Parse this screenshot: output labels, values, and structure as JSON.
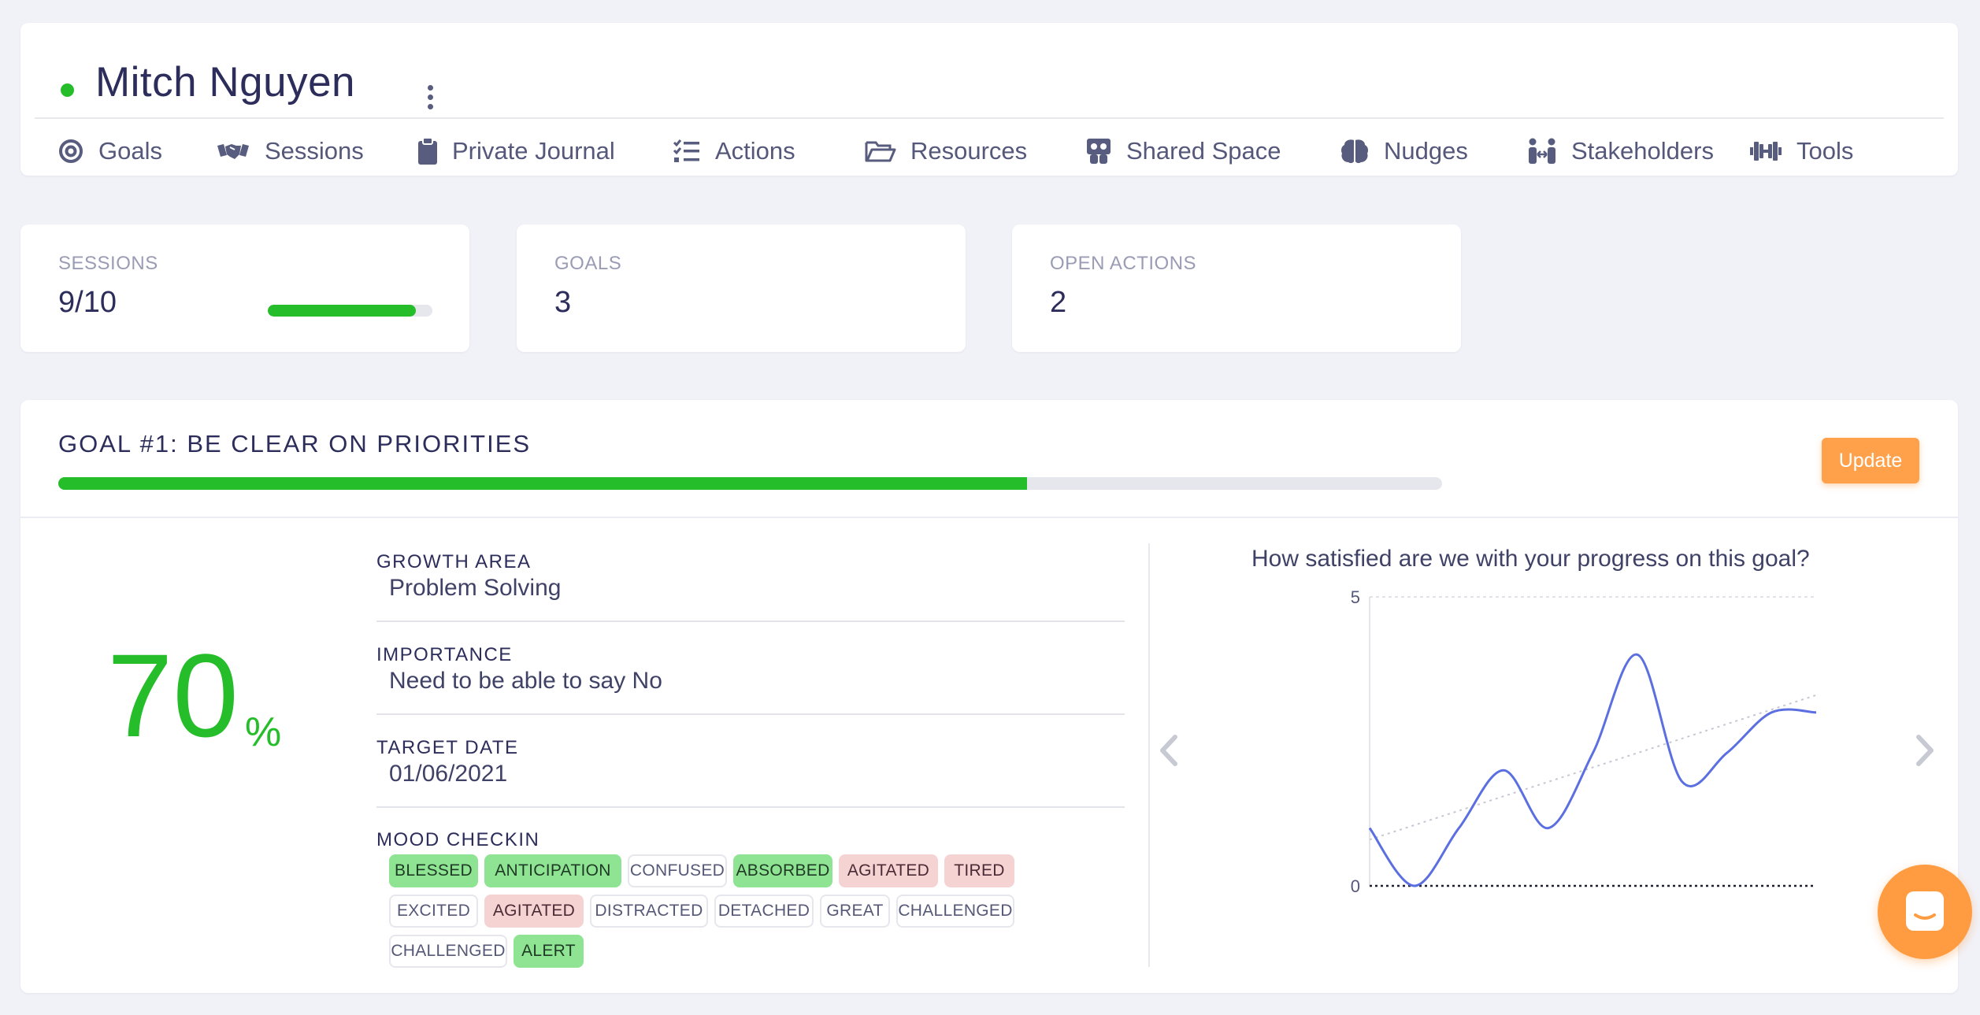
{
  "header": {
    "name": "Mitch Nguyen",
    "status_color": "#25bd2a",
    "tabs": [
      {
        "label": "Goals",
        "icon": "target-icon"
      },
      {
        "label": "Sessions",
        "icon": "handshake-icon"
      },
      {
        "label": "Private Journal",
        "icon": "clipboard-icon"
      },
      {
        "label": "Actions",
        "icon": "checklist-icon"
      },
      {
        "label": "Resources",
        "icon": "folder-open-icon"
      },
      {
        "label": "Shared Space",
        "icon": "shared-space-icon"
      },
      {
        "label": "Nudges",
        "icon": "brain-icon"
      },
      {
        "label": "Stakeholders",
        "icon": "people-arrows-icon"
      },
      {
        "label": "Tools",
        "icon": "dumbbell-icon"
      }
    ]
  },
  "stats": {
    "sessions": {
      "label": "SESSIONS",
      "value": "9/10",
      "progress": 0.9
    },
    "goals": {
      "label": "GOALS",
      "value": "3"
    },
    "open_actions": {
      "label": "OPEN ACTIONS",
      "value": "2"
    }
  },
  "goal": {
    "title": "GOAL #1: BE CLEAR ON PRIORITIES",
    "progress": 0.7,
    "update_label": "Update",
    "percent": "70",
    "percent_sign": "%",
    "growth_area_label": "GROWTH AREA",
    "growth_area": "Problem Solving",
    "importance_label": "IMPORTANCE",
    "importance": "Need to be able to say No",
    "target_date_label": "TARGET DATE",
    "target_date": "01/06/2021",
    "mood_label": "MOOD CHECKIN",
    "moods": [
      {
        "text": "BLESSED",
        "kind": "positive"
      },
      {
        "text": "ANTICIPATION",
        "kind": "positive"
      },
      {
        "text": "CONFUSED",
        "kind": "neutral"
      },
      {
        "text": "ABSORBED",
        "kind": "positive"
      },
      {
        "text": "AGITATED",
        "kind": "negative"
      },
      {
        "text": "TIRED",
        "kind": "negative"
      },
      {
        "text": "EXCITED",
        "kind": "neutral"
      },
      {
        "text": "AGITATED",
        "kind": "negative"
      },
      {
        "text": "DISTRACTED",
        "kind": "neutral"
      },
      {
        "text": "DETACHED",
        "kind": "neutral"
      },
      {
        "text": "GREAT",
        "kind": "neutral"
      },
      {
        "text": "CHALLENGED",
        "kind": "neutral"
      },
      {
        "text": "CHALLENGED",
        "kind": "neutral"
      },
      {
        "text": "ALERT",
        "kind": "positive"
      }
    ]
  },
  "chart_data": {
    "type": "line",
    "title": "How satisfied are we with your progress on this goal?",
    "ylim": [
      0,
      5
    ],
    "yticks": [
      "0",
      "5"
    ],
    "series": [
      {
        "values": [
          1.0,
          0.0,
          1.0,
          2.0,
          1.0,
          2.3,
          4.0,
          1.8,
          2.3,
          3.0,
          3.0
        ],
        "color": "#5b6fe0"
      }
    ],
    "trend": {
      "start": 0.8,
      "end": 3.3,
      "color": "#c5c7d3",
      "style": "dotted"
    },
    "grid": false
  }
}
